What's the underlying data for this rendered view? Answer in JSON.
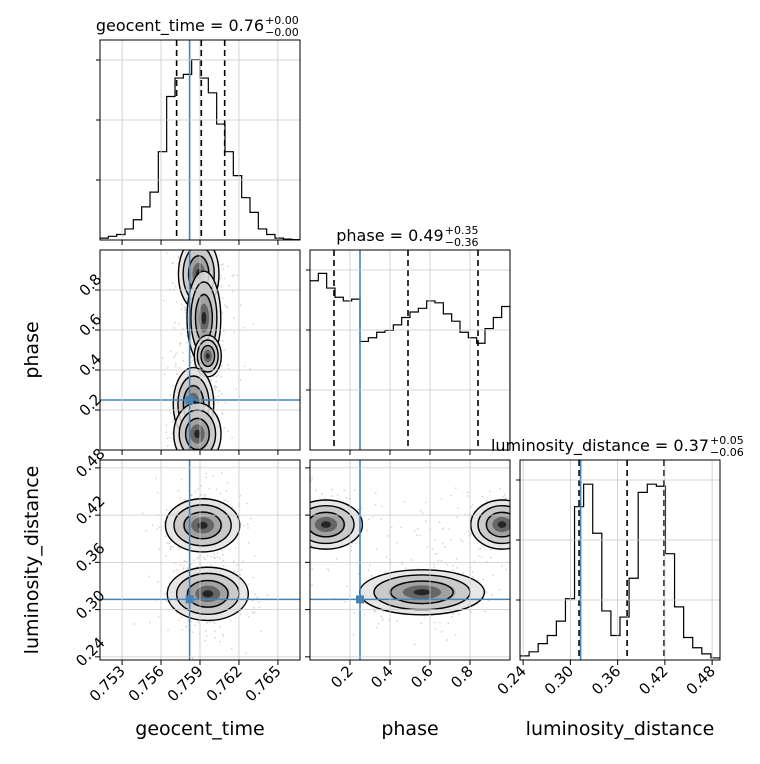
{
  "chart_data": {
    "type": "corner",
    "parameters": [
      "geocent_time",
      "phase",
      "luminosity_distance"
    ],
    "truths": {
      "geocent_time": 0.7582,
      "phase": 0.25,
      "luminosity_distance": 0.313
    },
    "colors": {
      "truth": "#4682b4",
      "hist": "#000000",
      "grid": "#c8c8c8",
      "contour": "#000000"
    },
    "grid": true,
    "diagonal": [
      {
        "param": "geocent_time",
        "title_main": "geocent_time = 0.76",
        "title_sup": "+0.00",
        "title_sub": "−0.00",
        "quantiles": [
          0.7572,
          0.7591,
          0.7609
        ],
        "range": [
          0.7513,
          0.7667
        ],
        "hist_values": [
          1,
          2,
          3,
          6,
          11,
          18,
          26,
          48,
          78,
          88,
          90,
          98,
          88,
          80,
          63,
          48,
          35,
          23,
          15,
          6,
          3,
          1,
          0.5,
          0.2
        ],
        "hist_max": 100
      },
      {
        "param": "phase",
        "title_main": "phase = 0.49",
        "title_sup": "+0.35",
        "title_sub": "−0.36",
        "quantiles": [
          0.12,
          0.49,
          0.84
        ],
        "range": [
          0.0,
          1.0
        ],
        "hist_values": [
          92,
          96,
          88,
          83,
          81,
          82,
          59,
          61,
          64,
          65,
          68,
          72,
          75,
          77,
          81,
          80,
          74,
          70,
          64,
          61,
          58,
          66,
          72,
          78
        ],
        "hist_max": 100
      },
      {
        "param": "luminosity_distance",
        "title_main": "luminosity_distance = 0.37",
        "title_sup": "+0.05",
        "title_sub": "−0.06",
        "quantiles": [
          0.311,
          0.372,
          0.419
        ],
        "range": [
          0.236,
          0.49
        ],
        "hist_values": [
          2,
          4,
          8,
          12,
          19,
          30,
          75,
          86,
          62,
          24,
          12,
          21,
          40,
          82,
          86,
          85,
          52,
          26,
          11,
          6,
          3,
          1
        ],
        "hist_max": 90
      }
    ],
    "axes": {
      "geocent_time": {
        "range": [
          0.7513,
          0.7667
        ],
        "ticks": [
          0.753,
          0.756,
          0.759,
          0.762,
          0.765
        ],
        "tick_labels": [
          "0.753",
          "0.756",
          "0.759",
          "0.762",
          "0.765"
        ],
        "label": "geocent_time"
      },
      "phase": {
        "range": [
          0.0,
          1.0
        ],
        "ticks": [
          0.2,
          0.4,
          0.6,
          0.8
        ],
        "tick_labels": [
          "0.2",
          "0.4",
          "0.6",
          "0.8"
        ],
        "label": "phase"
      },
      "luminosity_distance": {
        "range": [
          0.236,
          0.49
        ],
        "ticks": [
          0.24,
          0.3,
          0.36,
          0.42,
          0.48
        ],
        "tick_labels": [
          "0.24",
          "0.30",
          "0.36",
          "0.42",
          "0.48"
        ],
        "label": "luminosity_distance"
      }
    },
    "joint": [
      {
        "x": "geocent_time",
        "y": "phase",
        "blobs": [
          {
            "cx": 0.7589,
            "cy": 0.88,
            "sx": 0.0006,
            "sy": 0.07,
            "w": 1.0
          },
          {
            "cx": 0.7593,
            "cy": 0.66,
            "sx": 0.0005,
            "sy": 0.09,
            "w": 1.0
          },
          {
            "cx": 0.7596,
            "cy": 0.47,
            "sx": 0.0004,
            "sy": 0.04,
            "w": 0.7
          },
          {
            "cx": 0.7585,
            "cy": 0.23,
            "sx": 0.0006,
            "sy": 0.07,
            "w": 1.0
          },
          {
            "cx": 0.7588,
            "cy": 0.08,
            "sx": 0.0007,
            "sy": 0.06,
            "w": 1.1
          }
        ],
        "spread": [
          0.0017,
          0.3
        ]
      },
      {
        "x": "geocent_time",
        "y": "luminosity_distance",
        "blobs": [
          {
            "cx": 0.7592,
            "cy": 0.407,
            "sx": 0.0011,
            "sy": 0.013,
            "w": 1.0
          },
          {
            "cx": 0.7596,
            "cy": 0.32,
            "sx": 0.0012,
            "sy": 0.013,
            "w": 1.0
          }
        ],
        "spread": [
          0.0019,
          0.035
        ]
      },
      {
        "x": "phase",
        "y": "luminosity_distance",
        "blobs": [
          {
            "cx": 0.08,
            "cy": 0.408,
            "sx": 0.07,
            "sy": 0.012,
            "w": 1.0
          },
          {
            "cx": 0.96,
            "cy": 0.408,
            "sx": 0.06,
            "sy": 0.012,
            "w": 0.9
          },
          {
            "cx": 0.56,
            "cy": 0.322,
            "sx": 0.12,
            "sy": 0.011,
            "w": 1.0
          }
        ],
        "spread": [
          0.28,
          0.032
        ]
      }
    ]
  }
}
